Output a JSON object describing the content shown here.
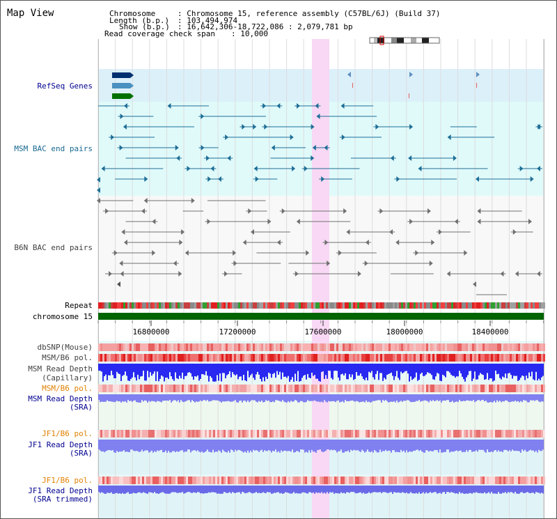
{
  "title": "Map View",
  "header": {
    "chromosome_label": "Chromosome",
    "chromosome_value": ": Chromosome 15, reference assembly (C57BL/6J) (Build 37)",
    "length_label": "Length (b.p.)",
    "length_value": ": 103,494,974",
    "show_label": "Show (b.p.)",
    "show_value": ": 16,642,306-18,722,086 : 2,079,781 bp",
    "coverage_label": "Read coverage check span",
    "coverage_value": ": 10,000"
  },
  "tracks": {
    "refseq": "RefSeq Genes",
    "msm_bac": "MSM BAC end pairs",
    "b6n_bac": "B6N BAC end pairs",
    "repeat": "Repeat",
    "chromosome": "chromosome 15",
    "dbsnp": "dbSNP(Mouse)",
    "msm_b6_pol_1": "MSM/B6 pol.",
    "msm_depth_cap_1": "MSM Read Depth",
    "msm_depth_cap_2": "(Capillary)",
    "msm_b6_pol_2": "MSM/B6 pol.",
    "msm_depth_sra_1": "MSM Read Depth",
    "msm_depth_sra_2": "(SRA)",
    "jf1_b6_pol_1": "JF1/B6 pol.",
    "jf1_depth_sra_1": "JF1 Read Depth",
    "jf1_depth_sra_2": "(SRA)",
    "jf1_b6_pol_2": "JF1/B6 pol.",
    "jf1_depth_trim_1": "JF1 Read Depth",
    "jf1_depth_trim_2": "(SRA trimmed)"
  },
  "axis_ticks": [
    "16800000",
    "17200000",
    "17600000",
    "18000000",
    "18400000"
  ],
  "colors": {
    "refseq_bg": "#dcf0fa",
    "bac_bg": "#e0fafa",
    "highlight": "#f8d8f4",
    "chromosome_bar": "#006400",
    "msm_bac": "#1e6e96",
    "b6n_bac": "#707070",
    "depth_blue": "#2828f0",
    "sra_blue": "#8080f0",
    "label_navy": "#000090",
    "label_teal": "#186890",
    "label_orange": "#e08000",
    "label_gray": "#404040"
  }
}
